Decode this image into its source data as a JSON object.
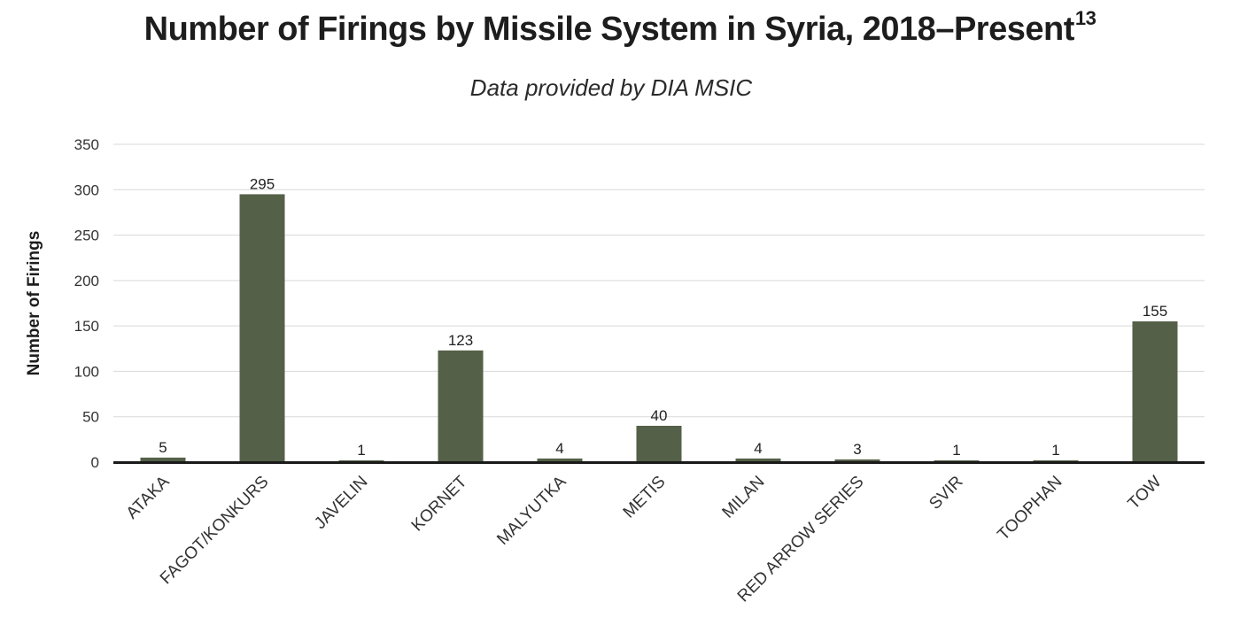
{
  "chart_data": {
    "type": "bar",
    "title": "Number of Firings by Missile System in Syria, 2018–Present",
    "title_footnote": "13",
    "subtitle": "Data provided by DIA MSIC",
    "xlabel": "",
    "ylabel": "Number of Firings",
    "ylim": [
      0,
      350
    ],
    "yticks": [
      0,
      50,
      100,
      150,
      200,
      250,
      300,
      350
    ],
    "grid": true,
    "bar_color": "#556048",
    "categories": [
      "ATAKA",
      "FAGOT/KONKURS",
      "JAVELIN",
      "KORNET",
      "MALYUTKA",
      "METIS",
      "MILAN",
      "RED ARROW SERIES",
      "SVIR",
      "TOOPHAN",
      "TOW"
    ],
    "values": [
      5,
      295,
      1,
      123,
      4,
      40,
      4,
      3,
      1,
      1,
      155
    ]
  }
}
